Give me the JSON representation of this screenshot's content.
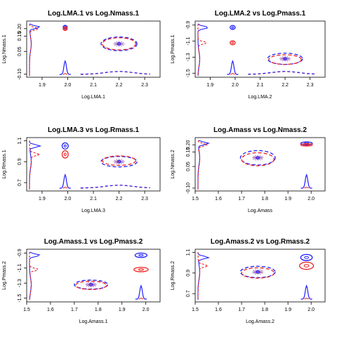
{
  "colors": {
    "series_a": "#1f1fff",
    "series_b": "#ee2222",
    "center_marks": "#8a3fa8"
  },
  "chart_data": [
    {
      "type": "scatter",
      "title": "Log.LMA.1 vs Log.Nmass.1",
      "xlabel": "Log.LMA.1",
      "ylabel": "Log.Nmass.1",
      "xlim": [
        1.84,
        2.36
      ],
      "ylim": [
        -0.12,
        0.25
      ],
      "xticks": [
        "1.9",
        "2.0",
        "2.1",
        "2.2",
        "2.3"
      ],
      "xtick_values": [
        1.9,
        2.0,
        2.1,
        2.2,
        2.3
      ],
      "yticks": [
        "-0.10",
        "0.05",
        "0.15",
        "0.20"
      ],
      "ytick_values": [
        -0.1,
        0.05,
        0.15,
        0.2
      ],
      "clusters": [
        {
          "series": "blue",
          "cx": 1.99,
          "cy": 0.21,
          "rx": 0.008,
          "ry": 0.012,
          "style": "solid"
        },
        {
          "series": "red",
          "cx": 1.99,
          "cy": 0.2,
          "rx": 0.008,
          "ry": 0.012,
          "style": "solid"
        },
        {
          "series": "blue",
          "cx": 2.2,
          "cy": 0.1,
          "rx": 0.07,
          "ry": 0.045,
          "style": "dashed"
        },
        {
          "series": "red",
          "cx": 2.2,
          "cy": 0.1,
          "rx": 0.065,
          "ry": 0.04,
          "style": "dashed"
        }
      ],
      "grid": false
    },
    {
      "type": "scatter",
      "title": "Log.LMA.2 vs Log.Pmass.1",
      "xlabel": "Log.LMA.2",
      "ylabel": "Log.Pmass.1",
      "xlim": [
        1.84,
        2.36
      ],
      "ylim": [
        -1.55,
        -0.85
      ],
      "xticks": [
        "1.9",
        "2.0",
        "2.1",
        "2.2",
        "2.3"
      ],
      "xtick_values": [
        1.9,
        2.0,
        2.1,
        2.2,
        2.3
      ],
      "yticks": [
        "-1.5",
        "-1.3",
        "-1.1",
        "-0.9"
      ],
      "ytick_values": [
        -1.5,
        -1.3,
        -1.1,
        -0.9
      ],
      "clusters": [
        {
          "series": "blue",
          "cx": 1.99,
          "cy": -0.93,
          "rx": 0.01,
          "ry": 0.025,
          "style": "solid"
        },
        {
          "series": "red",
          "cx": 1.99,
          "cy": -1.12,
          "rx": 0.01,
          "ry": 0.025,
          "style": "solid"
        },
        {
          "series": "blue",
          "cx": 2.2,
          "cy": -1.32,
          "rx": 0.07,
          "ry": 0.07,
          "style": "dashed"
        },
        {
          "series": "red",
          "cx": 2.2,
          "cy": -1.33,
          "rx": 0.065,
          "ry": 0.06,
          "style": "dashed"
        }
      ],
      "grid": false
    },
    {
      "type": "scatter",
      "title": "Log.LMA.3 vs Log.Rmass.1",
      "xlabel": "Log.LMA.3",
      "ylabel": "Log.Rmass.1",
      "xlim": [
        1.84,
        2.36
      ],
      "ylim": [
        0.62,
        1.13
      ],
      "xticks": [
        "1.9",
        "2.0",
        "2.1",
        "2.2",
        "2.3"
      ],
      "xtick_values": [
        1.9,
        2.0,
        2.1,
        2.2,
        2.3
      ],
      "yticks": [
        "0.7",
        "0.9",
        "1.1"
      ],
      "ytick_values": [
        0.7,
        0.9,
        1.1
      ],
      "clusters": [
        {
          "series": "blue",
          "cx": 1.99,
          "cy": 1.05,
          "rx": 0.012,
          "ry": 0.03,
          "style": "solid"
        },
        {
          "series": "red",
          "cx": 1.99,
          "cy": 0.97,
          "rx": 0.012,
          "ry": 0.035,
          "style": "solid"
        },
        {
          "series": "blue",
          "cx": 2.2,
          "cy": 0.9,
          "rx": 0.07,
          "ry": 0.05,
          "style": "dashed"
        },
        {
          "series": "red",
          "cx": 2.2,
          "cy": 0.91,
          "rx": 0.065,
          "ry": 0.045,
          "style": "dashed"
        }
      ],
      "grid": false
    },
    {
      "type": "scatter",
      "title": "Log.Amass vs Log.Nmass.2",
      "xlabel": "Log.Amass",
      "ylabel": "Log.Nmass.2",
      "xlim": [
        1.5,
        2.06
      ],
      "ylim": [
        -0.12,
        0.25
      ],
      "xticks": [
        "1.5",
        "1.6",
        "1.7",
        "1.8",
        "1.9",
        "2.0"
      ],
      "xtick_values": [
        1.5,
        1.6,
        1.7,
        1.8,
        1.9,
        2.0
      ],
      "yticks": [
        "-0.10",
        "0.05",
        "0.15",
        "0.20"
      ],
      "ytick_values": [
        -0.1,
        0.05,
        0.15,
        0.2
      ],
      "clusters": [
        {
          "series": "blue",
          "cx": 1.98,
          "cy": 0.21,
          "rx": 0.025,
          "ry": 0.01,
          "style": "solid"
        },
        {
          "series": "red",
          "cx": 1.98,
          "cy": 0.2,
          "rx": 0.025,
          "ry": 0.008,
          "style": "solid"
        },
        {
          "series": "blue",
          "cx": 1.77,
          "cy": 0.11,
          "rx": 0.075,
          "ry": 0.05,
          "style": "dashed"
        },
        {
          "series": "red",
          "cx": 1.77,
          "cy": 0.1,
          "rx": 0.07,
          "ry": 0.045,
          "style": "dashed"
        }
      ],
      "grid": false
    },
    {
      "type": "scatter",
      "title": "Log.Amass.1 vs Log.Pmass.2",
      "xlabel": "Log.Amass.1",
      "ylabel": "Log.Pmass.2",
      "xlim": [
        1.5,
        2.06
      ],
      "ylim": [
        -1.55,
        -0.85
      ],
      "xticks": [
        "1.5",
        "1.6",
        "1.7",
        "1.8",
        "1.9",
        "2.0"
      ],
      "xtick_values": [
        1.5,
        1.6,
        1.7,
        1.8,
        1.9,
        2.0
      ],
      "yticks": [
        "-1.5",
        "-1.3",
        "-1.1",
        "-0.9"
      ],
      "ytick_values": [
        -1.5,
        -1.3,
        -1.1,
        -0.9
      ],
      "clusters": [
        {
          "series": "blue",
          "cx": 1.98,
          "cy": -0.93,
          "rx": 0.025,
          "ry": 0.03,
          "style": "solid"
        },
        {
          "series": "red",
          "cx": 1.98,
          "cy": -1.12,
          "rx": 0.03,
          "ry": 0.03,
          "style": "solid"
        },
        {
          "series": "blue",
          "cx": 1.77,
          "cy": -1.32,
          "rx": 0.07,
          "ry": 0.06,
          "style": "dashed"
        },
        {
          "series": "red",
          "cx": 1.77,
          "cy": -1.33,
          "rx": 0.065,
          "ry": 0.055,
          "style": "dashed"
        }
      ],
      "grid": false
    },
    {
      "type": "scatter",
      "title": "Log.Amass.2 vs Log.Rmass.2",
      "xlabel": "Log.Amass.2",
      "ylabel": "Log.Rmass.2",
      "xlim": [
        1.5,
        2.06
      ],
      "ylim": [
        0.62,
        1.13
      ],
      "xticks": [
        "1.5",
        "1.6",
        "1.7",
        "1.8",
        "1.9",
        "2.0"
      ],
      "xtick_values": [
        1.5,
        1.6,
        1.7,
        1.8,
        1.9,
        2.0
      ],
      "yticks": [
        "0.7",
        "0.9",
        "1.1"
      ],
      "ytick_values": [
        0.7,
        0.9,
        1.1
      ],
      "clusters": [
        {
          "series": "blue",
          "cx": 1.98,
          "cy": 1.05,
          "rx": 0.025,
          "ry": 0.03,
          "style": "solid"
        },
        {
          "series": "red",
          "cx": 1.98,
          "cy": 0.97,
          "rx": 0.03,
          "ry": 0.035,
          "style": "solid"
        },
        {
          "series": "blue",
          "cx": 1.77,
          "cy": 0.91,
          "rx": 0.075,
          "ry": 0.055,
          "style": "dashed"
        },
        {
          "series": "red",
          "cx": 1.77,
          "cy": 0.9,
          "rx": 0.07,
          "ry": 0.05,
          "style": "dashed"
        }
      ],
      "grid": false
    }
  ]
}
